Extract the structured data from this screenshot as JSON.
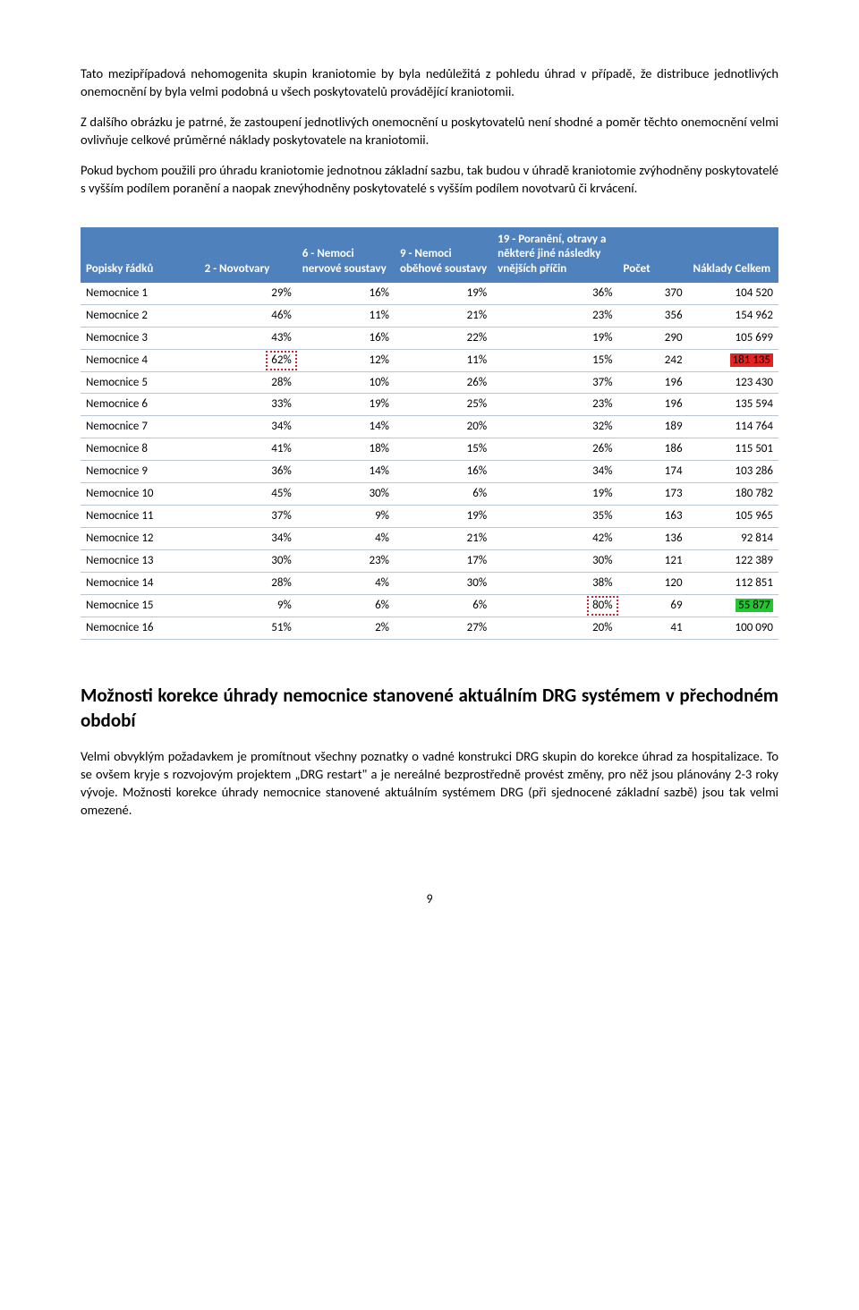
{
  "paragraphs": {
    "p1": "Tato mezipřípadová nehomogenita skupin kraniotomie by byla nedůležitá z pohledu úhrad v případě, že distribuce jednotlivých onemocnění by byla velmi podobná u všech poskytovatelů provádějící kraniotomii.",
    "p2": "Z dalšího obrázku je patrné, že zastoupení jednotlivých onemocnění u poskytovatelů není shodné a poměr těchto onemocnění velmi ovlivňuje celkové průměrné náklady poskytovatele na kraniotomii.",
    "p3": "Pokud bychom použili pro úhradu kraniotomie jednotnou základní sazbu, tak budou v úhradě kraniotomie zvýhodněny poskytovatelé s vyšším podílem poranění a naopak znevýhodněny poskytovatelé s vyšším podílem novotvarů či krvácení."
  },
  "table": {
    "headers": {
      "c0": "Popisky řádků",
      "c1": "2 - Novotvary",
      "c2": "6 - Nemoci nervové soustavy",
      "c3": "9 - Nemoci oběhové soustavy",
      "c4": "19 - Poranění, otravy a některé jiné následky vnějších příčin",
      "c5": "Počet",
      "c6": "Náklady Celkem"
    },
    "col_widths": [
      "17%",
      "14%",
      "14%",
      "14%",
      "18%",
      "10%",
      "13%"
    ],
    "rows": [
      {
        "label": "Nemocnice 1",
        "v1": "29%",
        "v2": "16%",
        "v3": "19%",
        "v4": "36%",
        "v5": "370",
        "v6": "104 520"
      },
      {
        "label": "Nemocnice 2",
        "v1": "46%",
        "v2": "11%",
        "v3": "21%",
        "v4": "23%",
        "v5": "356",
        "v6": "154 962"
      },
      {
        "label": "Nemocnice 3",
        "v1": "43%",
        "v2": "16%",
        "v3": "22%",
        "v4": "19%",
        "v5": "290",
        "v6": "105 699"
      },
      {
        "label": "Nemocnice 4",
        "v1": "62%",
        "v2": "12%",
        "v3": "11%",
        "v4": "15%",
        "v5": "242",
        "v6": "181 135",
        "v1_box": true,
        "v6_red": true
      },
      {
        "label": "Nemocnice 5",
        "v1": "28%",
        "v2": "10%",
        "v3": "26%",
        "v4": "37%",
        "v5": "196",
        "v6": "123 430"
      },
      {
        "label": "Nemocnice 6",
        "v1": "33%",
        "v2": "19%",
        "v3": "25%",
        "v4": "23%",
        "v5": "196",
        "v6": "135 594"
      },
      {
        "label": "Nemocnice 7",
        "v1": "34%",
        "v2": "14%",
        "v3": "20%",
        "v4": "32%",
        "v5": "189",
        "v6": "114 764"
      },
      {
        "label": "Nemocnice 8",
        "v1": "41%",
        "v2": "18%",
        "v3": "15%",
        "v4": "26%",
        "v5": "186",
        "v6": "115 501"
      },
      {
        "label": "Nemocnice 9",
        "v1": "36%",
        "v2": "14%",
        "v3": "16%",
        "v4": "34%",
        "v5": "174",
        "v6": "103 286"
      },
      {
        "label": "Nemocnice 10",
        "v1": "45%",
        "v2": "30%",
        "v3": "6%",
        "v4": "19%",
        "v5": "173",
        "v6": "180 782"
      },
      {
        "label": "Nemocnice 11",
        "v1": "37%",
        "v2": "9%",
        "v3": "19%",
        "v4": "35%",
        "v5": "163",
        "v6": "105 965"
      },
      {
        "label": "Nemocnice 12",
        "v1": "34%",
        "v2": "4%",
        "v3": "21%",
        "v4": "42%",
        "v5": "136",
        "v6": "92 814"
      },
      {
        "label": "Nemocnice 13",
        "v1": "30%",
        "v2": "23%",
        "v3": "17%",
        "v4": "30%",
        "v5": "121",
        "v6": "122 389"
      },
      {
        "label": "Nemocnice 14",
        "v1": "28%",
        "v2": "4%",
        "v3": "30%",
        "v4": "38%",
        "v5": "120",
        "v6": "112 851"
      },
      {
        "label": "Nemocnice 15",
        "v1": "9%",
        "v2": "6%",
        "v3": "6%",
        "v4": "80%",
        "v5": "69",
        "v6": "55 877",
        "v4_box": true,
        "v6_green": true
      },
      {
        "label": "Nemocnice 16",
        "v1": "51%",
        "v2": "2%",
        "v3": "27%",
        "v4": "20%",
        "v5": "41",
        "v6": "100 090"
      }
    ]
  },
  "section_title": "Možnosti korekce úhrady nemocnice stanovené aktuálním DRG systémem v přechodném období",
  "p4": "Velmi obvyklým požadavkem je promítnout všechny poznatky o vadné konstrukci DRG skupin do korekce úhrad za hospitalizace. To se ovšem kryje s rozvojovým projektem „DRG restart\" a je nereálné bezprostředně provést změny, pro něž jsou plánovány 2-3 roky vývoje. Možnosti korekce úhrady nemocnice stanovené aktuálním systémem DRG (při sjednocené základní sazbě) jsou tak velmi omezené.",
  "page_num": "9"
}
